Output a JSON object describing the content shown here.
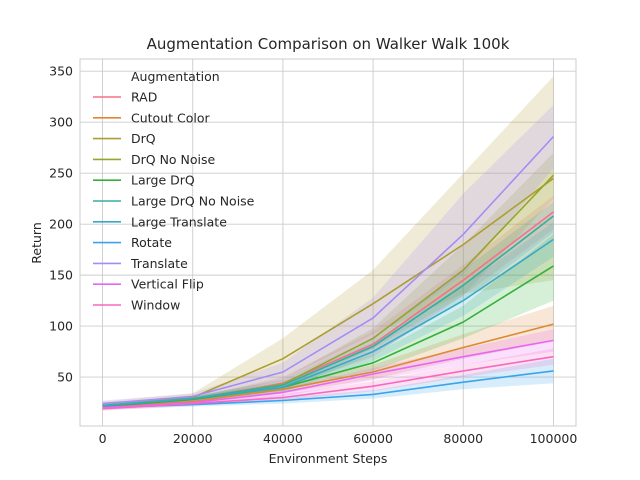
{
  "chart_data": {
    "type": "line",
    "title": "Augmentation Comparison on Walker Walk 100k",
    "xlabel": "Environment Steps",
    "ylabel": "Return",
    "x": [
      0,
      20000,
      40000,
      60000,
      80000,
      100000
    ],
    "xticks": [
      0,
      20000,
      40000,
      60000,
      80000,
      100000
    ],
    "xtick_labels": [
      "0",
      "20000",
      "40000",
      "60000",
      "80000",
      "100000"
    ],
    "yticks": [
      50,
      100,
      150,
      200,
      250,
      300,
      350
    ],
    "ytick_labels": [
      "50",
      "100",
      "150",
      "200",
      "250",
      "300",
      "350"
    ],
    "xlim": [
      -5000,
      105000
    ],
    "ylim": [
      2,
      362
    ],
    "grid": true,
    "legend_title": "Augmentation",
    "legend_position": "top-left",
    "series": [
      {
        "name": "RAD",
        "color": "#f77189",
        "values": [
          21,
          28,
          44,
          82,
          145,
          212
        ],
        "lower": [
          19,
          26,
          38,
          70,
          130,
          195
        ],
        "upper": [
          23,
          30,
          50,
          95,
          160,
          228
        ]
      },
      {
        "name": "Cutout Color",
        "color": "#dc8932",
        "values": [
          20,
          26,
          38,
          55,
          79,
          102
        ],
        "lower": [
          18,
          24,
          34,
          48,
          68,
          85
        ],
        "upper": [
          22,
          28,
          42,
          62,
          92,
          120
        ]
      },
      {
        "name": "DrQ",
        "color": "#ae9d31",
        "values": [
          22,
          30,
          68,
          122,
          180,
          245
        ],
        "lower": [
          19,
          26,
          48,
          92,
          132,
          145
        ],
        "upper": [
          26,
          34,
          88,
          155,
          250,
          345
        ]
      },
      {
        "name": "DrQ No Noise",
        "color": "#97a431",
        "values": [
          21,
          29,
          43,
          88,
          155,
          248
        ],
        "lower": [
          19,
          27,
          38,
          78,
          130,
          225
        ],
        "upper": [
          23,
          31,
          48,
          98,
          180,
          270
        ]
      },
      {
        "name": "Large DrQ",
        "color": "#33b039",
        "values": [
          21,
          28,
          40,
          64,
          104,
          159
        ],
        "lower": [
          19,
          26,
          36,
          56,
          88,
          125
        ],
        "upper": [
          23,
          30,
          44,
          72,
          120,
          190
        ]
      },
      {
        "name": "Large DrQ No Noise",
        "color": "#36ada4",
        "values": [
          22,
          29,
          42,
          80,
          140,
          208
        ],
        "lower": [
          20,
          27,
          37,
          72,
          125,
          192
        ],
        "upper": [
          24,
          31,
          47,
          88,
          155,
          222
        ]
      },
      {
        "name": "Large Translate",
        "color": "#38a9c5",
        "values": [
          22,
          29,
          40,
          75,
          125,
          185
        ],
        "lower": [
          20,
          27,
          35,
          66,
          110,
          168
        ],
        "upper": [
          24,
          31,
          45,
          84,
          140,
          202
        ]
      },
      {
        "name": "Rotate",
        "color": "#3ba3ec",
        "values": [
          20,
          23,
          27,
          33,
          45,
          56
        ],
        "lower": [
          18,
          21,
          24,
          29,
          38,
          44
        ],
        "upper": [
          22,
          25,
          30,
          37,
          52,
          68
        ]
      },
      {
        "name": "Translate",
        "color": "#a48cf4",
        "values": [
          24,
          31,
          55,
          108,
          190,
          286
        ],
        "lower": [
          21,
          28,
          46,
          88,
          150,
          255
        ],
        "upper": [
          27,
          34,
          64,
          128,
          230,
          317
        ]
      },
      {
        "name": "Vertical Flip",
        "color": "#e866f4",
        "values": [
          20,
          25,
          35,
          53,
          70,
          86
        ],
        "lower": [
          18,
          23,
          31,
          47,
          62,
          75
        ],
        "upper": [
          22,
          27,
          39,
          59,
          78,
          97
        ]
      },
      {
        "name": "Window",
        "color": "#f668c2",
        "values": [
          19,
          24,
          30,
          41,
          56,
          70
        ],
        "lower": [
          17,
          22,
          27,
          36,
          50,
          62
        ],
        "upper": [
          21,
          26,
          33,
          46,
          62,
          78
        ]
      }
    ]
  }
}
